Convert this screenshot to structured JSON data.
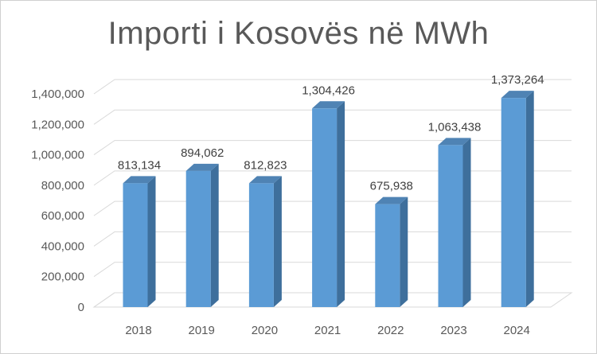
{
  "chart_data": {
    "type": "bar",
    "title": "Importi i Kosovës në MWh",
    "categories": [
      "2018",
      "2019",
      "2020",
      "2021",
      "2022",
      "2023",
      "2024"
    ],
    "values": [
      813134,
      894062,
      812823,
      1304426,
      675938,
      1063438,
      1373264
    ],
    "value_labels": [
      "813,134",
      "894,062",
      "812,823",
      "1,304,426",
      "675,938",
      "1,063,438",
      "1,373,264"
    ],
    "ylim": [
      0,
      1400000
    ],
    "yticks": [
      0,
      200000,
      400000,
      600000,
      800000,
      1000000,
      1200000,
      1400000
    ],
    "ytick_labels": [
      "0",
      "200,000",
      "400,000",
      "600,000",
      "800,000",
      "1,000,000",
      "1,200,000",
      "1,400,000"
    ],
    "grid": true,
    "legend": "none",
    "style": "3d-column",
    "colors": {
      "bar_front": "#5b9bd5",
      "bar_side": "#3e6f9c",
      "bar_top": "#4f83b4",
      "grid": "#d9d9d9"
    }
  }
}
